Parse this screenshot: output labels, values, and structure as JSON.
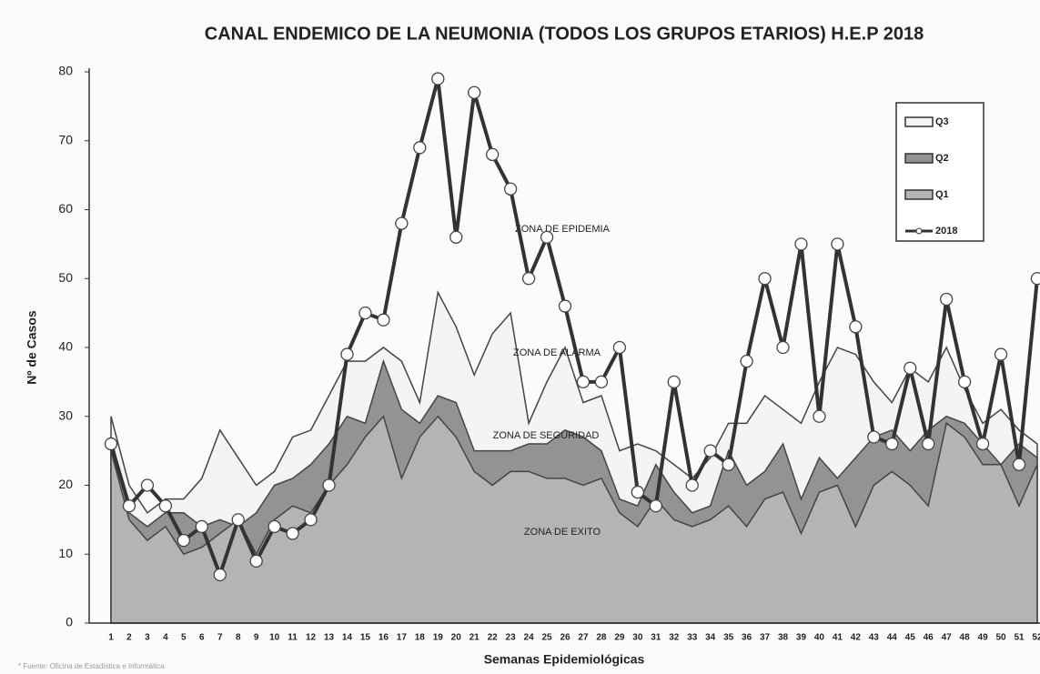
{
  "chart_data": {
    "type": "area",
    "title": "CANAL ENDEMICO DE LA NEUMONIA (TODOS LOS GRUPOS ETARIOS)  H.E.P 2018",
    "x_label": "Semanas Epidemiológicas",
    "y_label": "Nº de Casos",
    "source": "* Fuente: Oficina de Estadística e Informática",
    "annotations": [
      "ZONA DE EPIDEMIA",
      "ZONA DE ALARMA",
      "ZONA DE SEGURIDAD",
      "ZONA DE EXITO"
    ],
    "categories": [
      "1",
      "2",
      "3",
      "4",
      "5",
      "6",
      "7",
      "8",
      "9",
      "10",
      "11",
      "12",
      "13",
      "14",
      "15",
      "16",
      "17",
      "18",
      "19",
      "20",
      "21",
      "22",
      "23",
      "24",
      "25",
      "26",
      "27",
      "28",
      "29",
      "30",
      "31",
      "32",
      "33",
      "34",
      "35",
      "36",
      "37",
      "38",
      "39",
      "40",
      "41",
      "42",
      "43",
      "44",
      "45",
      "46",
      "47",
      "48",
      "49",
      "50",
      "51",
      "52"
    ],
    "ylim": [
      0,
      80
    ],
    "yticks": [
      0,
      10,
      20,
      30,
      40,
      50,
      60,
      70,
      80
    ],
    "legend": "upper right",
    "series": [
      {
        "name": "Q3",
        "color": "#f4f4f4",
        "values": [
          30,
          20,
          16,
          18,
          18,
          21,
          28,
          24,
          20,
          22,
          27,
          28,
          33,
          38,
          38,
          40,
          38,
          32,
          48,
          43,
          36,
          42,
          45,
          29,
          35,
          40,
          32,
          33,
          25,
          26,
          25,
          23,
          21,
          24,
          29,
          29,
          33,
          31,
          29,
          35,
          40,
          39,
          35,
          32,
          37,
          35,
          40,
          34,
          29,
          31,
          28,
          26
        ]
      },
      {
        "name": "Q2",
        "color": "#939393",
        "values": [
          27,
          16,
          14,
          16,
          16,
          14,
          15,
          14,
          16,
          20,
          21,
          23,
          26,
          30,
          29,
          38,
          31,
          29,
          33,
          32,
          25,
          25,
          25,
          26,
          26,
          28,
          27,
          25,
          18,
          17,
          23,
          19,
          16,
          17,
          25,
          20,
          22,
          26,
          18,
          24,
          21,
          24,
          27,
          28,
          25,
          28,
          30,
          29,
          26,
          23,
          26,
          24
        ]
      },
      {
        "name": "Q1",
        "color": "#b4b4b4",
        "values": [
          25,
          15,
          12,
          14,
          10,
          11,
          13,
          15,
          10,
          15,
          17,
          16,
          20,
          23,
          27,
          30,
          21,
          27,
          30,
          27,
          22,
          20,
          22,
          22,
          21,
          21,
          20,
          21,
          16,
          14,
          18,
          15,
          14,
          15,
          17,
          14,
          18,
          19,
          13,
          19,
          20,
          14,
          20,
          22,
          20,
          17,
          29,
          27,
          23,
          23,
          17,
          23
        ]
      },
      {
        "name": "2018",
        "color": "#333333",
        "values": [
          26,
          17,
          20,
          17,
          12,
          14,
          7,
          15,
          9,
          14,
          13,
          15,
          20,
          39,
          45,
          44,
          58,
          69,
          79,
          56,
          77,
          68,
          63,
          50,
          56,
          46,
          35,
          35,
          40,
          19,
          17,
          35,
          20,
          25,
          23,
          38,
          50,
          40,
          55,
          30,
          55,
          43,
          27,
          26,
          37,
          26,
          47,
          35,
          26,
          39,
          23,
          50
        ]
      }
    ]
  }
}
